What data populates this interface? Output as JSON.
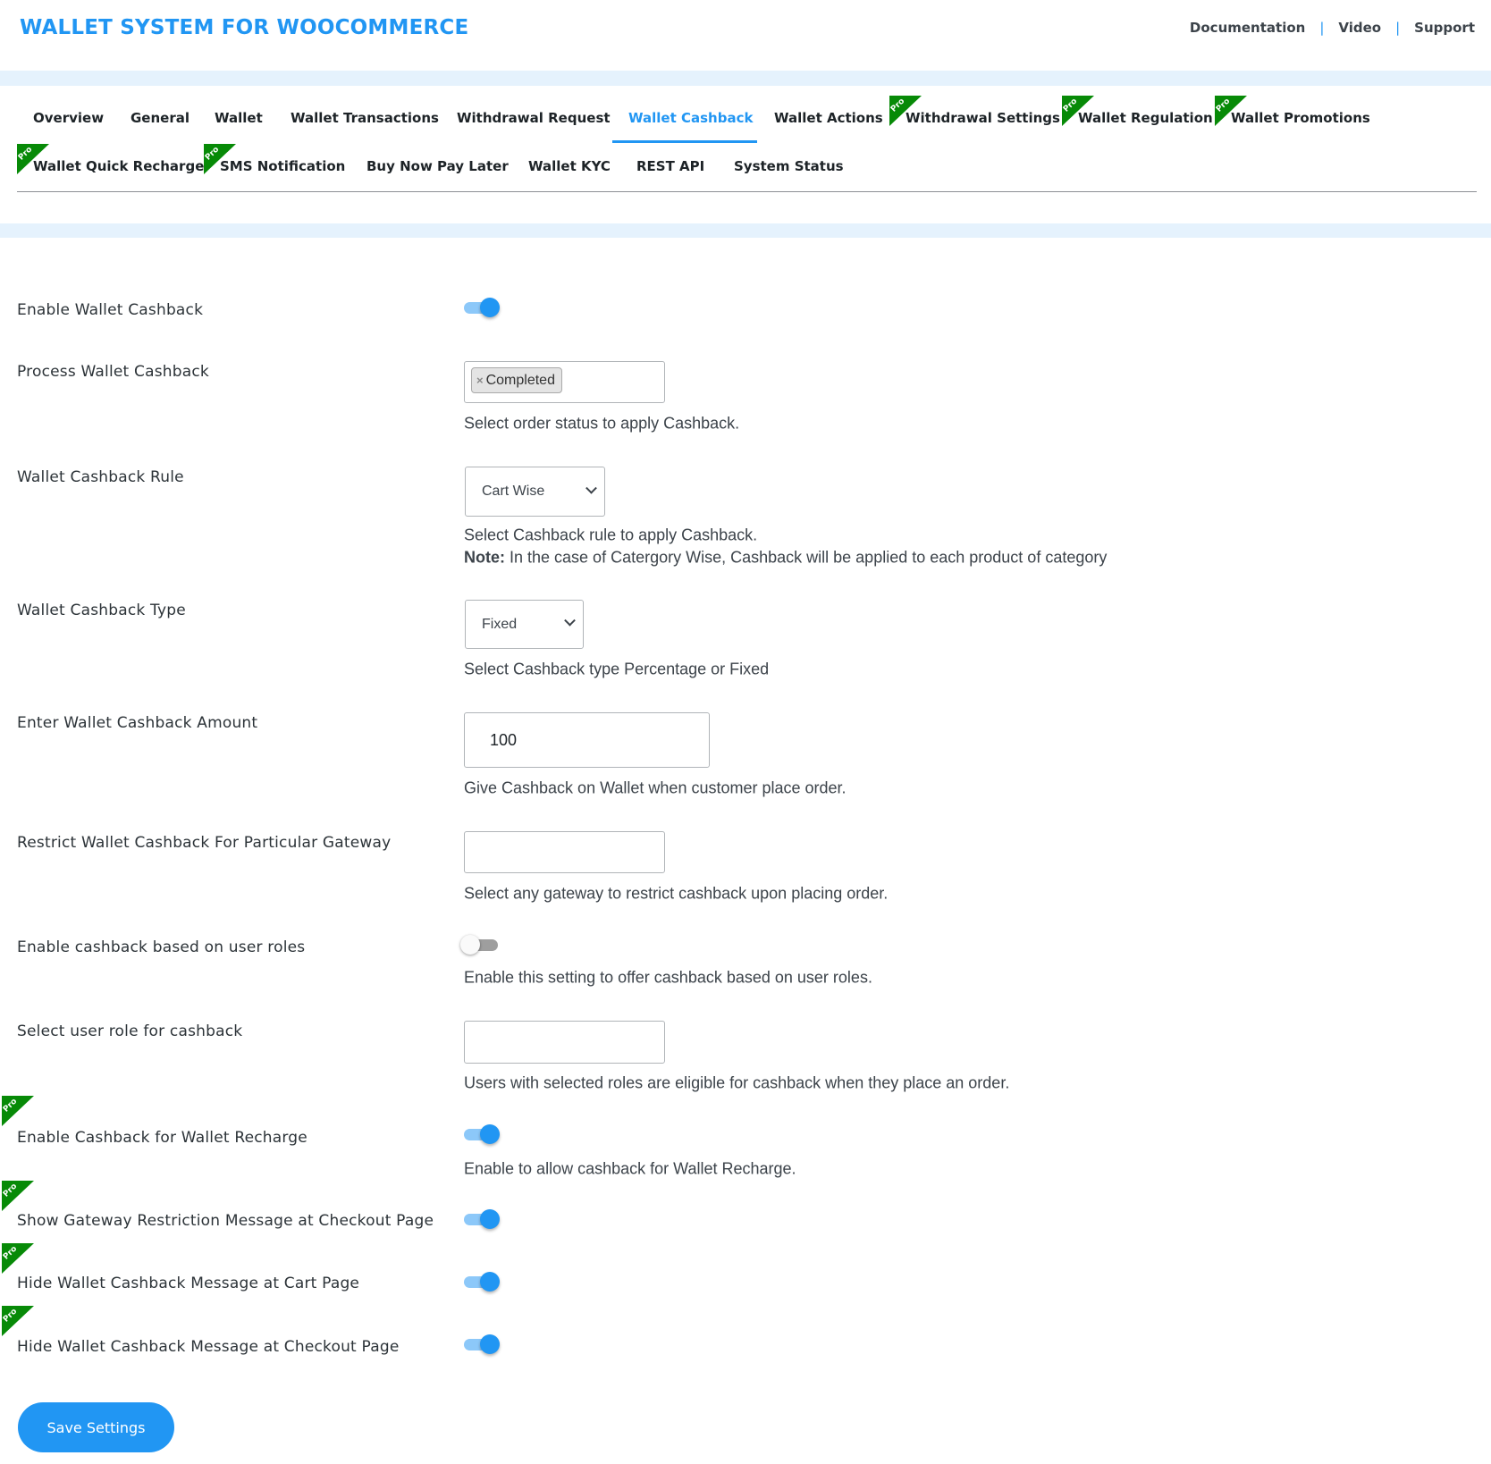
{
  "header": {
    "title": "WALLET SYSTEM FOR WOOCOMMERCE",
    "links": [
      "Documentation",
      "Video",
      "Support"
    ],
    "separator": "|"
  },
  "pro_badge": "Pro",
  "tabs": [
    {
      "label": "Overview",
      "pro": false
    },
    {
      "label": "General",
      "pro": false
    },
    {
      "label": "Wallet",
      "pro": false
    },
    {
      "label": "Wallet Transactions",
      "pro": false
    },
    {
      "label": "Withdrawal Request",
      "pro": false
    },
    {
      "label": "Wallet Cashback",
      "pro": false,
      "active": true
    },
    {
      "label": "Wallet Actions",
      "pro": false
    },
    {
      "label": "Withdrawal Settings",
      "pro": true
    },
    {
      "label": "Wallet Regulation",
      "pro": true
    },
    {
      "label": "Wallet Promotions",
      "pro": true
    },
    {
      "label": "Wallet Quick Recharge",
      "pro": true
    },
    {
      "label": "SMS Notification",
      "pro": true
    },
    {
      "label": "Buy Now Pay Later",
      "pro": false
    },
    {
      "label": "Wallet KYC",
      "pro": false
    },
    {
      "label": "REST API",
      "pro": false
    },
    {
      "label": "System Status",
      "pro": false
    }
  ],
  "form": {
    "enable_cashback": {
      "label": "Enable Wallet Cashback",
      "enabled": true
    },
    "process_cashback": {
      "label": "Process Wallet Cashback",
      "selected": [
        "Completed"
      ],
      "remove_glyph": "×",
      "help": "Select order status to apply Cashback."
    },
    "cashback_rule": {
      "label": "Wallet Cashback Rule",
      "value": "Cart Wise",
      "help": "Select Cashback rule to apply Cashback.",
      "note_label": "Note:",
      "note": " In the case of Catergory Wise, Cashback will be applied to each product of category"
    },
    "cashback_type": {
      "label": "Wallet Cashback Type",
      "value": "Fixed",
      "help": "Select Cashback type Percentage or Fixed"
    },
    "cashback_amount": {
      "label": "Enter Wallet Cashback Amount",
      "value": "100",
      "help": "Give Cashback on Wallet when customer place order."
    },
    "restrict_gateway": {
      "label": "Restrict Wallet Cashback For Particular Gateway",
      "value": "",
      "help": "Select any gateway to restrict cashback upon placing order."
    },
    "user_roles_toggle": {
      "label": "Enable cashback based on user roles",
      "enabled": false,
      "help": "Enable this setting to offer cashback based on user roles."
    },
    "user_role_select": {
      "label": "Select user role for cashback",
      "value": "",
      "help": "Users with selected roles are eligible for cashback when they place an order."
    },
    "recharge_cashback": {
      "label": "Enable Cashback for Wallet Recharge",
      "enabled": true,
      "pro": true,
      "help": "Enable to allow cashback for Wallet Recharge."
    },
    "gateway_msg": {
      "label": "Show Gateway Restriction Message at Checkout Page",
      "enabled": true,
      "pro": true
    },
    "hide_cart_msg": {
      "label": "Hide Wallet Cashback Message at Cart Page",
      "enabled": true,
      "pro": true
    },
    "hide_checkout_msg": {
      "label": "Hide Wallet Cashback Message at Checkout Page",
      "enabled": true,
      "pro": true
    }
  },
  "save_label": "Save Settings",
  "colors": {
    "accent": "#2196f3",
    "pro": "#078a07",
    "band": "#e5f2fd"
  }
}
